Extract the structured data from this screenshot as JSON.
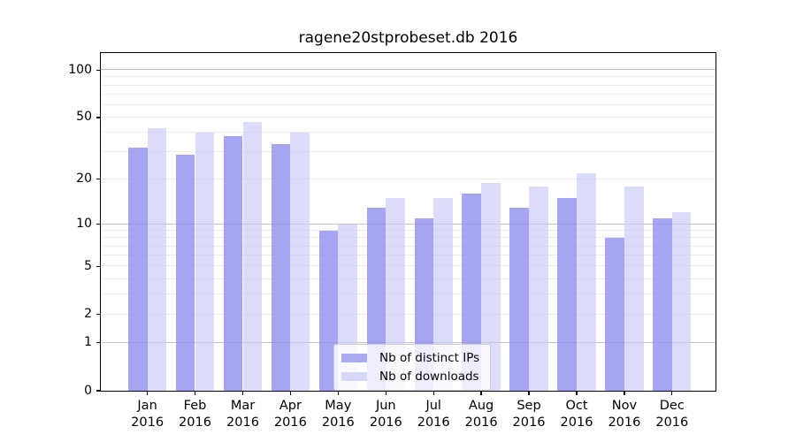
{
  "title": "ragene20stprobeset.db 2016",
  "chart_data": {
    "type": "bar",
    "categories": [
      "Jan",
      "Feb",
      "Mar",
      "Apr",
      "May",
      "Jun",
      "Jul",
      "Aug",
      "Sep",
      "Oct",
      "Nov",
      "Dec"
    ],
    "year_label": "2016",
    "series": [
      {
        "name": "Nb of distinct IPs",
        "values": [
          32,
          29,
          38,
          34,
          9,
          13,
          11,
          16,
          13,
          15,
          8,
          11
        ],
        "fill": "rgba(140,140,240,0.78)",
        "legend_color": "#aaaaf0"
      },
      {
        "name": "Nb of downloads",
        "values": [
          43,
          40,
          47,
          40,
          10,
          15,
          15,
          19,
          18,
          22,
          18,
          12
        ],
        "fill": "rgba(200,200,248,0.65)",
        "legend_color": "#d7d7f8"
      }
    ],
    "xlabel": "",
    "ylabel": "",
    "yscale": "log1p",
    "ylim": [
      0,
      128
    ],
    "yticks": [
      0,
      1,
      2,
      5,
      10,
      20,
      50,
      100
    ],
    "major_gridlines": [
      1,
      10,
      100
    ],
    "minor_gridlines": [
      2,
      3,
      4,
      5,
      6,
      7,
      8,
      9,
      20,
      30,
      40,
      50,
      60,
      70,
      80,
      90
    ],
    "grid": true,
    "legend_position": "lower center"
  },
  "colors": {
    "axis": "#000000",
    "grid_minor": "#ececec",
    "grid_major": "#c3c3c3",
    "legend_border": "#cccccc"
  }
}
